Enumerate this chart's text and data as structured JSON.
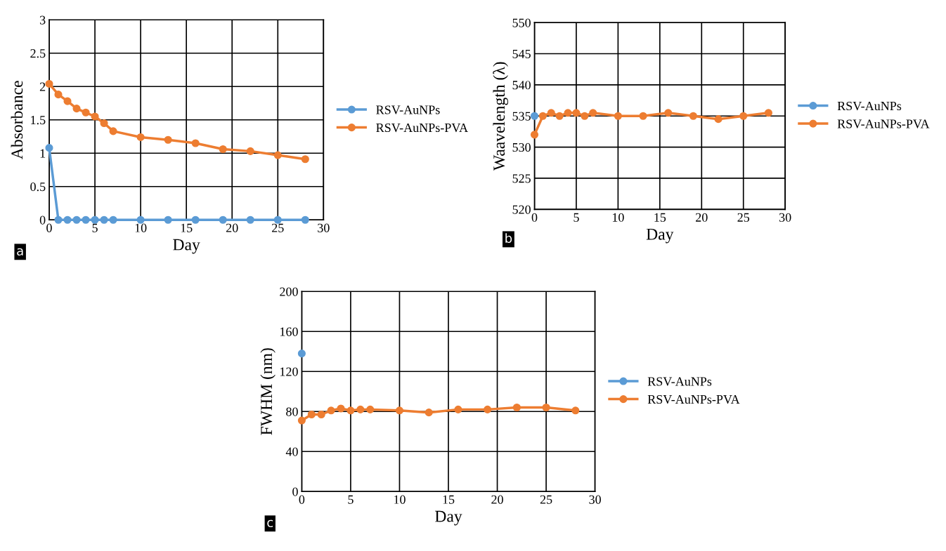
{
  "chart_data": [
    {
      "type": "line",
      "xlabel": "Day",
      "ylabel": "Absorbance",
      "x": [
        0,
        1,
        2,
        3,
        4,
        5,
        6,
        7,
        10,
        13,
        16,
        19,
        22,
        25,
        28
      ],
      "series": [
        {
          "name": "RSV-AuNPs",
          "color": "#5b9bd5",
          "values": [
            1.08,
            0,
            0,
            0,
            0,
            0,
            0,
            0,
            0,
            0,
            0,
            0,
            0,
            0,
            0
          ]
        },
        {
          "name": "RSV-AuNPs-PVA",
          "color": "#ed7d31",
          "values": [
            2.04,
            1.88,
            1.78,
            1.67,
            1.61,
            1.55,
            1.45,
            1.33,
            1.24,
            1.2,
            1.15,
            1.06,
            1.03,
            0.97,
            0.91
          ]
        }
      ],
      "xlim": [
        0,
        30
      ],
      "xticks": [
        0,
        5,
        10,
        15,
        20,
        25,
        30
      ],
      "ylim": [
        0,
        3
      ],
      "yticks": [
        0,
        0.5,
        1,
        1.5,
        2,
        2.5,
        3
      ],
      "grid": true,
      "legend": "right",
      "marker": "circle",
      "line_style": "solid",
      "annotations": [
        "a"
      ]
    },
    {
      "type": "line",
      "xlabel": "Day",
      "ylabel": "Waavelength (λ)",
      "x": [
        0,
        1,
        2,
        3,
        4,
        5,
        6,
        7,
        10,
        13,
        16,
        19,
        22,
        25,
        28
      ],
      "series": [
        {
          "name": "RSV-AuNPs",
          "color": "#5b9bd5",
          "values": [
            535,
            null,
            null,
            null,
            null,
            null,
            null,
            null,
            null,
            null,
            null,
            null,
            null,
            null,
            null
          ]
        },
        {
          "name": "RSV-AuNPs-PVA",
          "color": "#ed7d31",
          "values": [
            532,
            535,
            535.5,
            535,
            535.5,
            535.5,
            535,
            535.5,
            535,
            535,
            535.5,
            535,
            534.5,
            535,
            535.5
          ]
        }
      ],
      "xlim": [
        0,
        30
      ],
      "xticks": [
        0,
        5,
        10,
        15,
        20,
        25,
        30
      ],
      "ylim": [
        520,
        550
      ],
      "yticks": [
        520,
        525,
        530,
        535,
        540,
        545,
        550
      ],
      "grid": true,
      "legend": "right",
      "marker": "circle",
      "line_style": "solid",
      "annotations": [
        "b"
      ]
    },
    {
      "type": "line",
      "xlabel": "Day",
      "ylabel": "FWHM (nm)",
      "x": [
        0,
        1,
        2,
        3,
        4,
        5,
        6,
        7,
        10,
        13,
        16,
        19,
        22,
        25,
        28
      ],
      "series": [
        {
          "name": "RSV-AuNPs",
          "color": "#5b9bd5",
          "values": [
            138,
            null,
            null,
            null,
            null,
            null,
            null,
            null,
            null,
            null,
            null,
            null,
            null,
            null,
            null
          ]
        },
        {
          "name": "RSV-AuNPs-PVA",
          "color": "#ed7d31",
          "values": [
            71,
            77,
            77,
            81,
            83,
            81,
            82,
            82,
            81,
            79,
            82,
            82,
            84,
            84,
            81
          ]
        }
      ],
      "xlim": [
        0,
        30
      ],
      "xticks": [
        0,
        5,
        10,
        15,
        20,
        25,
        30
      ],
      "ylim": [
        0,
        200
      ],
      "yticks": [
        0,
        40,
        80,
        120,
        160,
        200
      ],
      "grid": true,
      "legend": "right",
      "marker": "circle",
      "line_style": "solid",
      "annotations": [
        "c"
      ]
    }
  ]
}
